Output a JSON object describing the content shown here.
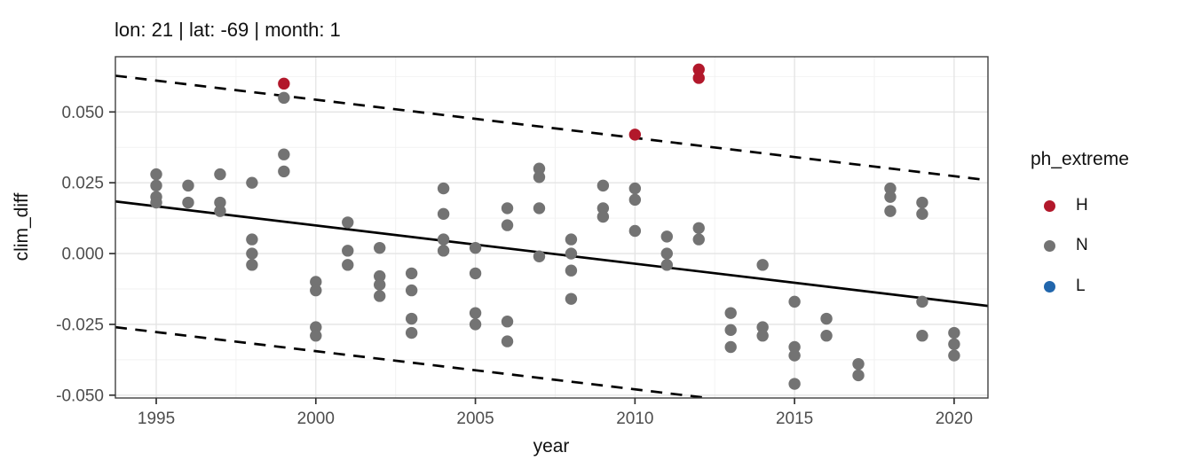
{
  "colors": {
    "accent_red": "#B2182B",
    "point_gray": "#737373",
    "accent_blue": "#2166AC",
    "grid_major": "#E4E4E4",
    "grid_minor": "#F2F2F2",
    "panel_border": "#404040",
    "panel_background": "#FFFFFF",
    "tick": "#333333",
    "tick_label": "#4D4D4D",
    "fit_line": "#000000"
  },
  "chart_data": {
    "type": "scatter",
    "title": "lon: 21 | lat: -69 | month: 1",
    "xlabel": "year",
    "ylabel": "clim_diff",
    "xlim": [
      1993.72,
      2021.06
    ],
    "ylim": [
      -0.051,
      0.0695
    ],
    "grid": "on",
    "legend_position": "right",
    "x_ticks": [
      1995,
      2000,
      2005,
      2010,
      2015,
      2020
    ],
    "x_tick_labels": [
      "1995",
      "2000",
      "2005",
      "2010",
      "2015",
      "2020"
    ],
    "x_minor": [
      1997.5,
      2002.5,
      2007.5,
      2012.5,
      2017.5
    ],
    "y_ticks": [
      0.05,
      0.025,
      0.0,
      -0.025,
      -0.05
    ],
    "y_tick_labels": [
      "0.050",
      "0.025",
      "0.000",
      "-0.025",
      "-0.050"
    ],
    "y_minor": [
      0.0625,
      0.0375,
      0.0125,
      -0.0125,
      -0.0375
    ],
    "legend": {
      "title": "ph_extreme",
      "entries": [
        {
          "label": "H",
          "color": "#B2182B"
        },
        {
          "label": "N",
          "color": "#737373"
        },
        {
          "label": "L",
          "color": "#2166AC"
        }
      ]
    },
    "fit_lines": [
      {
        "name": "regression-line",
        "style": "solid",
        "from": [
          1993.72,
          0.0184
        ],
        "to": [
          2021.06,
          -0.0185
        ]
      },
      {
        "name": "upper-interval-line",
        "style": "dashed",
        "from": [
          1993.72,
          0.0628
        ],
        "to": [
          2021.06,
          0.0259
        ]
      },
      {
        "name": "lower-interval-line",
        "style": "dashed",
        "from": [
          1993.72,
          -0.026
        ],
        "to": [
          2012.27,
          -0.051
        ]
      }
    ],
    "series": [
      {
        "name": "H",
        "color": "#B2182B",
        "points": [
          [
            1999,
            0.06
          ],
          [
            2010,
            0.042
          ],
          [
            2012,
            0.065
          ],
          [
            2012,
            0.062
          ]
        ]
      },
      {
        "name": "N",
        "color": "#737373",
        "points": [
          [
            1995,
            0.028
          ],
          [
            1995,
            0.024
          ],
          [
            1995,
            0.02
          ],
          [
            1995,
            0.018
          ],
          [
            1996,
            0.024
          ],
          [
            1996,
            0.018
          ],
          [
            1997,
            0.028
          ],
          [
            1997,
            0.018
          ],
          [
            1997,
            0.015
          ],
          [
            1998,
            0.025
          ],
          [
            1998,
            0.005
          ],
          [
            1998,
            0.0
          ],
          [
            1998,
            -0.004
          ],
          [
            1999,
            0.055
          ],
          [
            1999,
            0.035
          ],
          [
            1999,
            0.029
          ],
          [
            2000,
            -0.01
          ],
          [
            2000,
            -0.013
          ],
          [
            2000,
            -0.026
          ],
          [
            2000,
            -0.029
          ],
          [
            2001,
            0.011
          ],
          [
            2001,
            0.001
          ],
          [
            2001,
            -0.004
          ],
          [
            2002,
            0.002
          ],
          [
            2002,
            -0.008
          ],
          [
            2002,
            -0.011
          ],
          [
            2002,
            -0.015
          ],
          [
            2003,
            -0.007
          ],
          [
            2003,
            -0.013
          ],
          [
            2003,
            -0.023
          ],
          [
            2003,
            -0.028
          ],
          [
            2004,
            0.023
          ],
          [
            2004,
            0.014
          ],
          [
            2004,
            0.005
          ],
          [
            2004,
            0.001
          ],
          [
            2005,
            0.002
          ],
          [
            2005,
            -0.007
          ],
          [
            2005,
            -0.021
          ],
          [
            2005,
            -0.025
          ],
          [
            2006,
            0.016
          ],
          [
            2006,
            0.01
          ],
          [
            2006,
            -0.024
          ],
          [
            2006,
            -0.031
          ],
          [
            2007,
            0.03
          ],
          [
            2007,
            0.027
          ],
          [
            2007,
            0.016
          ],
          [
            2007,
            -0.001
          ],
          [
            2008,
            0.005
          ],
          [
            2008,
            0.0
          ],
          [
            2008,
            -0.006
          ],
          [
            2008,
            -0.016
          ],
          [
            2009,
            0.024
          ],
          [
            2009,
            0.016
          ],
          [
            2009,
            0.013
          ],
          [
            2010,
            0.023
          ],
          [
            2010,
            0.019
          ],
          [
            2010,
            0.008
          ],
          [
            2011,
            0.006
          ],
          [
            2011,
            0.0
          ],
          [
            2011,
            -0.004
          ],
          [
            2012,
            0.009
          ],
          [
            2012,
            0.005
          ],
          [
            2013,
            -0.021
          ],
          [
            2013,
            -0.027
          ],
          [
            2013,
            -0.033
          ],
          [
            2014,
            -0.004
          ],
          [
            2014,
            -0.026
          ],
          [
            2014,
            -0.029
          ],
          [
            2015,
            -0.017
          ],
          [
            2015,
            -0.033
          ],
          [
            2015,
            -0.036
          ],
          [
            2015,
            -0.046
          ],
          [
            2016,
            -0.023
          ],
          [
            2016,
            -0.029
          ],
          [
            2017,
            -0.039
          ],
          [
            2017,
            -0.043
          ],
          [
            2018,
            0.023
          ],
          [
            2018,
            0.02
          ],
          [
            2018,
            0.015
          ],
          [
            2019,
            0.018
          ],
          [
            2019,
            0.014
          ],
          [
            2019,
            -0.017
          ],
          [
            2019,
            -0.029
          ],
          [
            2020,
            -0.028
          ],
          [
            2020,
            -0.032
          ],
          [
            2020,
            -0.036
          ]
        ]
      },
      {
        "name": "L",
        "color": "#2166AC",
        "points": []
      }
    ]
  }
}
